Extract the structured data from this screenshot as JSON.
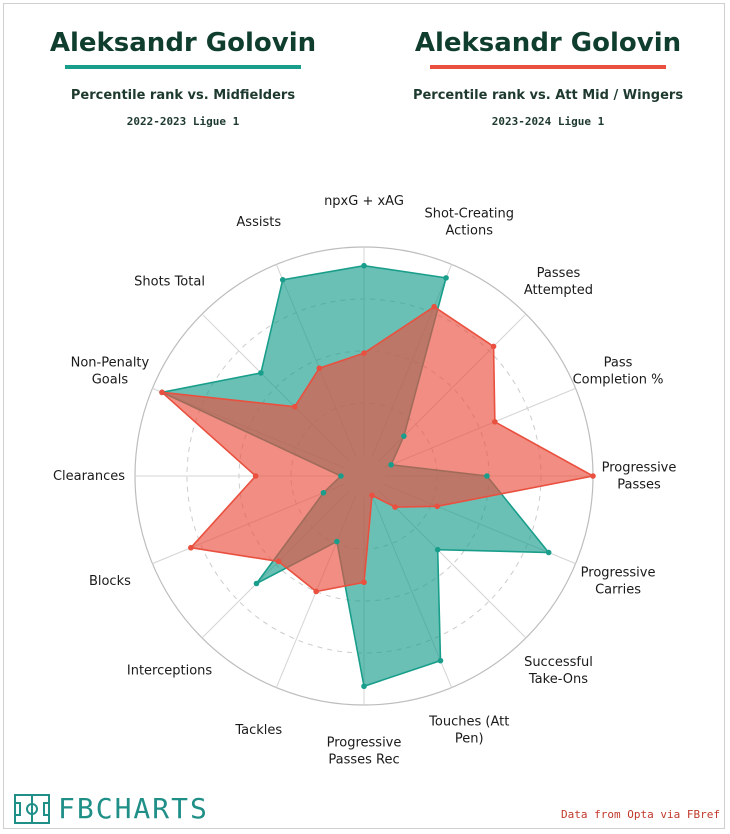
{
  "header": {
    "left": {
      "player": "Aleksandr Golovin",
      "comparison": "Percentile rank vs. Midfielders",
      "season": "2022-2023 Ligue 1",
      "color": "#1a9e8c"
    },
    "right": {
      "player": "Aleksandr Golovin",
      "comparison": "Percentile rank vs. Att Mid / Wingers",
      "season": "2023-2024 Ligue 1",
      "color": "#e9503f"
    }
  },
  "footer": {
    "logo": "FBCHARTS",
    "source": "Data from Opta via FBref"
  },
  "chart_data": {
    "type": "radar",
    "range": [
      0,
      100
    ],
    "categories": [
      "npxG + xAG",
      "Shot-Creating Actions",
      "Passes Attempted",
      "Pass Completion %",
      "Progressive Passes",
      "Progressive Carries",
      "Successful Take-Ons",
      "Touches (Att Pen)",
      "Progressive Passes Rec",
      "Tackles",
      "Interceptions",
      "Blocks",
      "Clearances",
      "Non-Penalty Goals",
      "Shots Total",
      "Assists"
    ],
    "series": [
      {
        "season": "2022-2023 Ligue 1",
        "color": "#1a9e8c",
        "values": [
          91,
          93,
          17,
          4,
          49,
          86,
          40,
          86,
          91,
          24,
          63,
          11,
          1,
          95,
          60,
          92
        ]
      },
      {
        "season": "2023-2024 Ligue 1",
        "color": "#e9503f",
        "values": [
          49,
          78,
          78,
          58,
          100,
          28,
          11,
          0,
          41,
          50,
          48,
          80,
          42,
          95,
          37,
          46
        ]
      }
    ]
  }
}
